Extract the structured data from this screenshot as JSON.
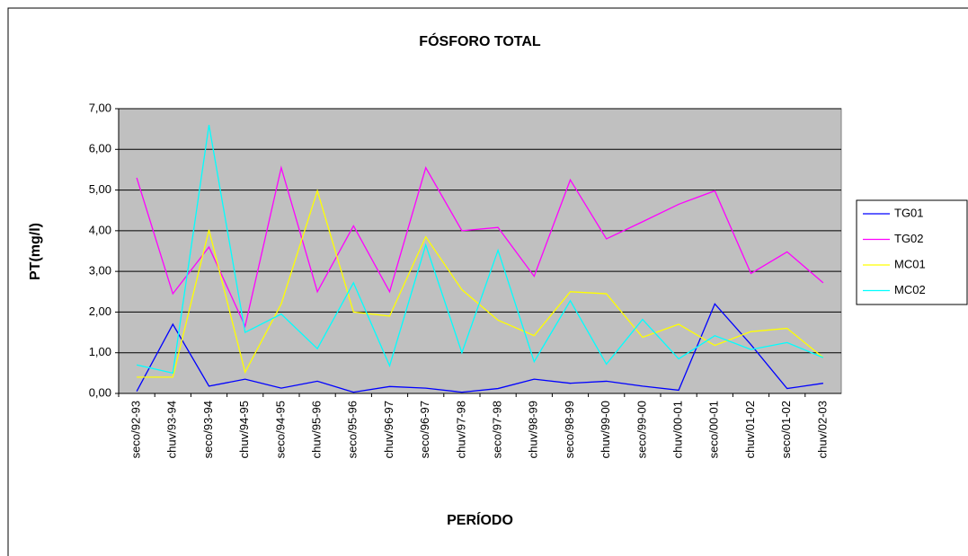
{
  "chart_data": {
    "type": "line",
    "title": "FÓSFORO TOTAL",
    "x_label": "PERÍODO",
    "y_label": "PT(mg/l)",
    "categories": [
      "seco/92-93",
      "chuv/93-94",
      "seco/93-94",
      "chuv/94-95",
      "seco/94-95",
      "chuv/95-96",
      "seco/95-96",
      "chuv/96-97",
      "seco/96-97",
      "chuv/97-98",
      "seco/97-98",
      "chuv/98-99",
      "seco/98-99",
      "chuv/99-00",
      "seco/99-00",
      "chuv/00-01",
      "seco/00-01",
      "chuv/01-02",
      "seco/01-02",
      "chuv/02-03"
    ],
    "series": [
      {
        "name": "TG01",
        "color": "#0000ff",
        "values": [
          0.05,
          1.7,
          0.18,
          0.35,
          0.13,
          0.3,
          0.03,
          0.17,
          0.13,
          0.03,
          0.12,
          0.35,
          0.25,
          0.3,
          0.18,
          0.08,
          2.2,
          1.2,
          0.12,
          0.25
        ]
      },
      {
        "name": "TG02",
        "color": "#ff00ff",
        "values": [
          5.3,
          2.45,
          3.6,
          1.65,
          5.55,
          2.5,
          4.12,
          2.5,
          5.55,
          4.0,
          4.08,
          2.88,
          5.25,
          3.8,
          4.22,
          4.65,
          4.98,
          2.95,
          3.48,
          2.72
        ]
      },
      {
        "name": "MC01",
        "color": "#ffff00",
        "values": [
          0.4,
          0.4,
          4.02,
          0.52,
          2.2,
          4.98,
          2.0,
          1.9,
          3.85,
          2.55,
          1.8,
          1.42,
          2.5,
          2.45,
          1.38,
          1.7,
          1.18,
          1.52,
          1.6,
          0.88
        ]
      },
      {
        "name": "MC02",
        "color": "#00ffff",
        "values": [
          0.7,
          0.5,
          6.6,
          1.5,
          1.95,
          1.1,
          2.72,
          0.68,
          3.65,
          1.0,
          3.52,
          0.78,
          2.28,
          0.72,
          1.82,
          0.85,
          1.42,
          1.08,
          1.25,
          0.88
        ]
      }
    ],
    "ylim": [
      0,
      7
    ],
    "yticks": [
      {
        "value": 0,
        "label": "0,00"
      },
      {
        "value": 1,
        "label": "1,00"
      },
      {
        "value": 2,
        "label": "2,00"
      },
      {
        "value": 3,
        "label": "3,00"
      },
      {
        "value": 4,
        "label": "4,00"
      },
      {
        "value": 5,
        "label": "5,00"
      },
      {
        "value": 6,
        "label": "6,00"
      },
      {
        "value": 7,
        "label": "7,00"
      }
    ],
    "grid": true,
    "plot_background": "#c0c0c0",
    "legend": "right"
  }
}
